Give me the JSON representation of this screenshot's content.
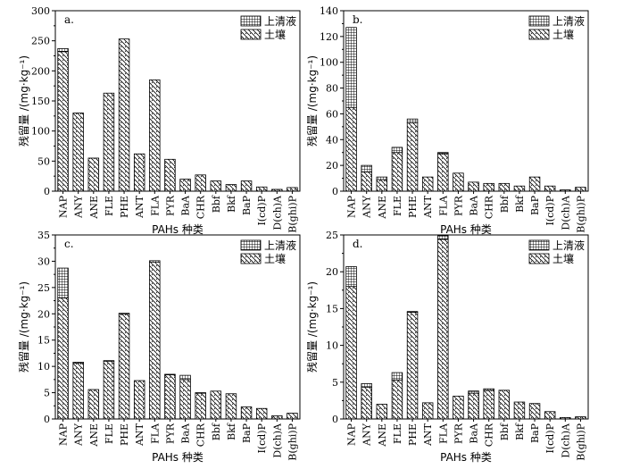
{
  "chart_data": [
    {
      "type": "bar",
      "stacked": true,
      "panel_label": "a.",
      "categories": [
        "NAP",
        "ANY",
        "ANE",
        "FLE",
        "PHE",
        "ANT",
        "FLA",
        "PYR",
        "BaA",
        "CHR",
        "Bbf",
        "Bkf",
        "BaP",
        "I(cd)P",
        "D(ch)A",
        "B(ghi)P"
      ],
      "series": [
        {
          "name": "土壤",
          "values": [
            232,
            130,
            55,
            163,
            253,
            62,
            185,
            53,
            20,
            27,
            17,
            11,
            17,
            7,
            3,
            6
          ]
        },
        {
          "name": "上清液",
          "values": [
            5,
            0,
            0,
            0,
            0,
            0,
            0,
            0,
            0,
            0,
            0,
            0,
            0,
            0,
            0,
            0
          ]
        }
      ],
      "xlabel": "PAHs 种类",
      "ylabel": "残留量 /(mg·kg⁻¹)",
      "ylim": [
        0,
        300
      ],
      "yticks": [
        0,
        50,
        100,
        150,
        200,
        250,
        300
      ],
      "legend": "top-right"
    },
    {
      "type": "bar",
      "stacked": true,
      "panel_label": "b.",
      "categories": [
        "NAP",
        "ANY",
        "ANE",
        "FLE",
        "PHE",
        "ANT",
        "FLA",
        "PYR",
        "BaA",
        "CHR",
        "Bbf",
        "Bkf",
        "BaP",
        "I(cd)P",
        "D(ch)A",
        "B(ghi)P"
      ],
      "series": [
        {
          "name": "土壤",
          "values": [
            65,
            15,
            9,
            30,
            53,
            11,
            29,
            14,
            7,
            6,
            6,
            4,
            11,
            4,
            1,
            3
          ]
        },
        {
          "name": "上清液",
          "values": [
            62,
            5,
            2,
            4,
            3,
            0,
            1,
            0,
            0,
            0,
            0,
            0,
            0,
            0,
            0,
            0
          ]
        }
      ],
      "xlabel": "PAHs 种类",
      "ylabel": "残留量 /(mg·kg⁻¹)",
      "ylim": [
        0,
        140
      ],
      "yticks": [
        0,
        20,
        40,
        60,
        80,
        100,
        120,
        140
      ],
      "legend": "top-right"
    },
    {
      "type": "bar",
      "stacked": true,
      "panel_label": "c.",
      "categories": [
        "NAP",
        "ANY",
        "ANE",
        "FLE",
        "PHE",
        "ANT",
        "FLA",
        "PYR",
        "BaA",
        "CHR",
        "Bbf",
        "Bkf",
        "BaP",
        "I(cd)P",
        "D(ch)A",
        "B(ghi)P"
      ],
      "series": [
        {
          "name": "土壤",
          "values": [
            23,
            10.6,
            5.6,
            11,
            20,
            7.3,
            29.8,
            8.4,
            7.5,
            4.9,
            5.3,
            4.8,
            2.3,
            2,
            0.6,
            1.1
          ]
        },
        {
          "name": "上清液",
          "values": [
            5.7,
            0.2,
            0,
            0.1,
            0.1,
            0,
            0.3,
            0.1,
            0.8,
            0.1,
            0,
            0,
            0,
            0,
            0,
            0
          ]
        }
      ],
      "xlabel": "PAHs 种类",
      "ylabel": "残留量 /(mg·kg⁻¹)",
      "ylim": [
        0,
        35
      ],
      "yticks": [
        0,
        5,
        10,
        15,
        20,
        25,
        30,
        35
      ],
      "legend": "top-right"
    },
    {
      "type": "bar",
      "stacked": true,
      "panel_label": "d.",
      "categories": [
        "NAP",
        "ANY",
        "ANE",
        "FLE",
        "PHE",
        "ANT",
        "FLA",
        "PYR",
        "BaA",
        "CHR",
        "Bbf",
        "Bkf",
        "BaP",
        "I(cd)P",
        "D(ch)A",
        "B(ghi)P"
      ],
      "series": [
        {
          "name": "土壤",
          "values": [
            18,
            4.3,
            2,
            5.3,
            14.5,
            2.2,
            24.4,
            3.1,
            3.5,
            3.9,
            3.9,
            2.3,
            2.1,
            1,
            0.2,
            0.3
          ]
        },
        {
          "name": "上清液",
          "values": [
            2.7,
            0.5,
            0,
            1,
            0.1,
            0,
            0.5,
            0,
            0.3,
            0.2,
            0,
            0,
            0,
            0,
            0,
            0
          ]
        }
      ],
      "xlabel": "PAHs 种类",
      "ylabel": "残留量 /(mg·kg⁻¹)",
      "ylim": [
        0,
        25
      ],
      "yticks": [
        0,
        5,
        10,
        15,
        20,
        25
      ],
      "legend": "top-right"
    }
  ]
}
